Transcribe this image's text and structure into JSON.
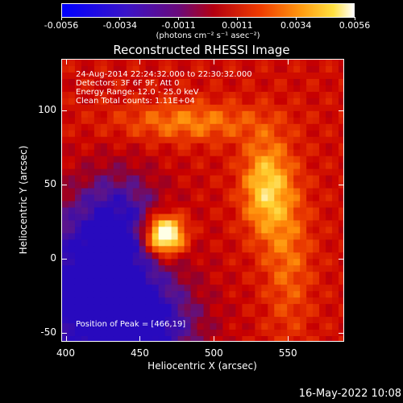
{
  "colorbar": {
    "tick_labels": [
      "-0.0056",
      "-0.0034",
      "-0.0011",
      "0.0011",
      "0.0034",
      "0.0056"
    ],
    "units": "(photons cm⁻² s⁻¹ asec⁻²)",
    "colormap": "rainbow-like (blue → purple → red → orange → yellow → white)"
  },
  "title": "Reconstructed RHESSI Image",
  "info": {
    "time": "24-Aug-2014 22:24:32.000 to 22:30:32.000",
    "detectors": "Detectors: 3F 6F 9F, Att 0",
    "energy": "Energy Range: 12.0 - 25.0 keV",
    "clean": "Clean     Total counts: 1.11E+04",
    "peak": "Position of Peak = [466,19]"
  },
  "axes": {
    "xlabel": "Heliocentric X (arcsec)",
    "ylabel": "Heliocentric Y (arcsec)",
    "x_ticks": [
      "400",
      "450",
      "500",
      "550"
    ],
    "y_ticks": [
      "100",
      "50",
      "0",
      "-50"
    ],
    "x_range": [
      397,
      588
    ],
    "y_range": [
      -56,
      135
    ]
  },
  "footer": "16-May-2022 10:08"
}
